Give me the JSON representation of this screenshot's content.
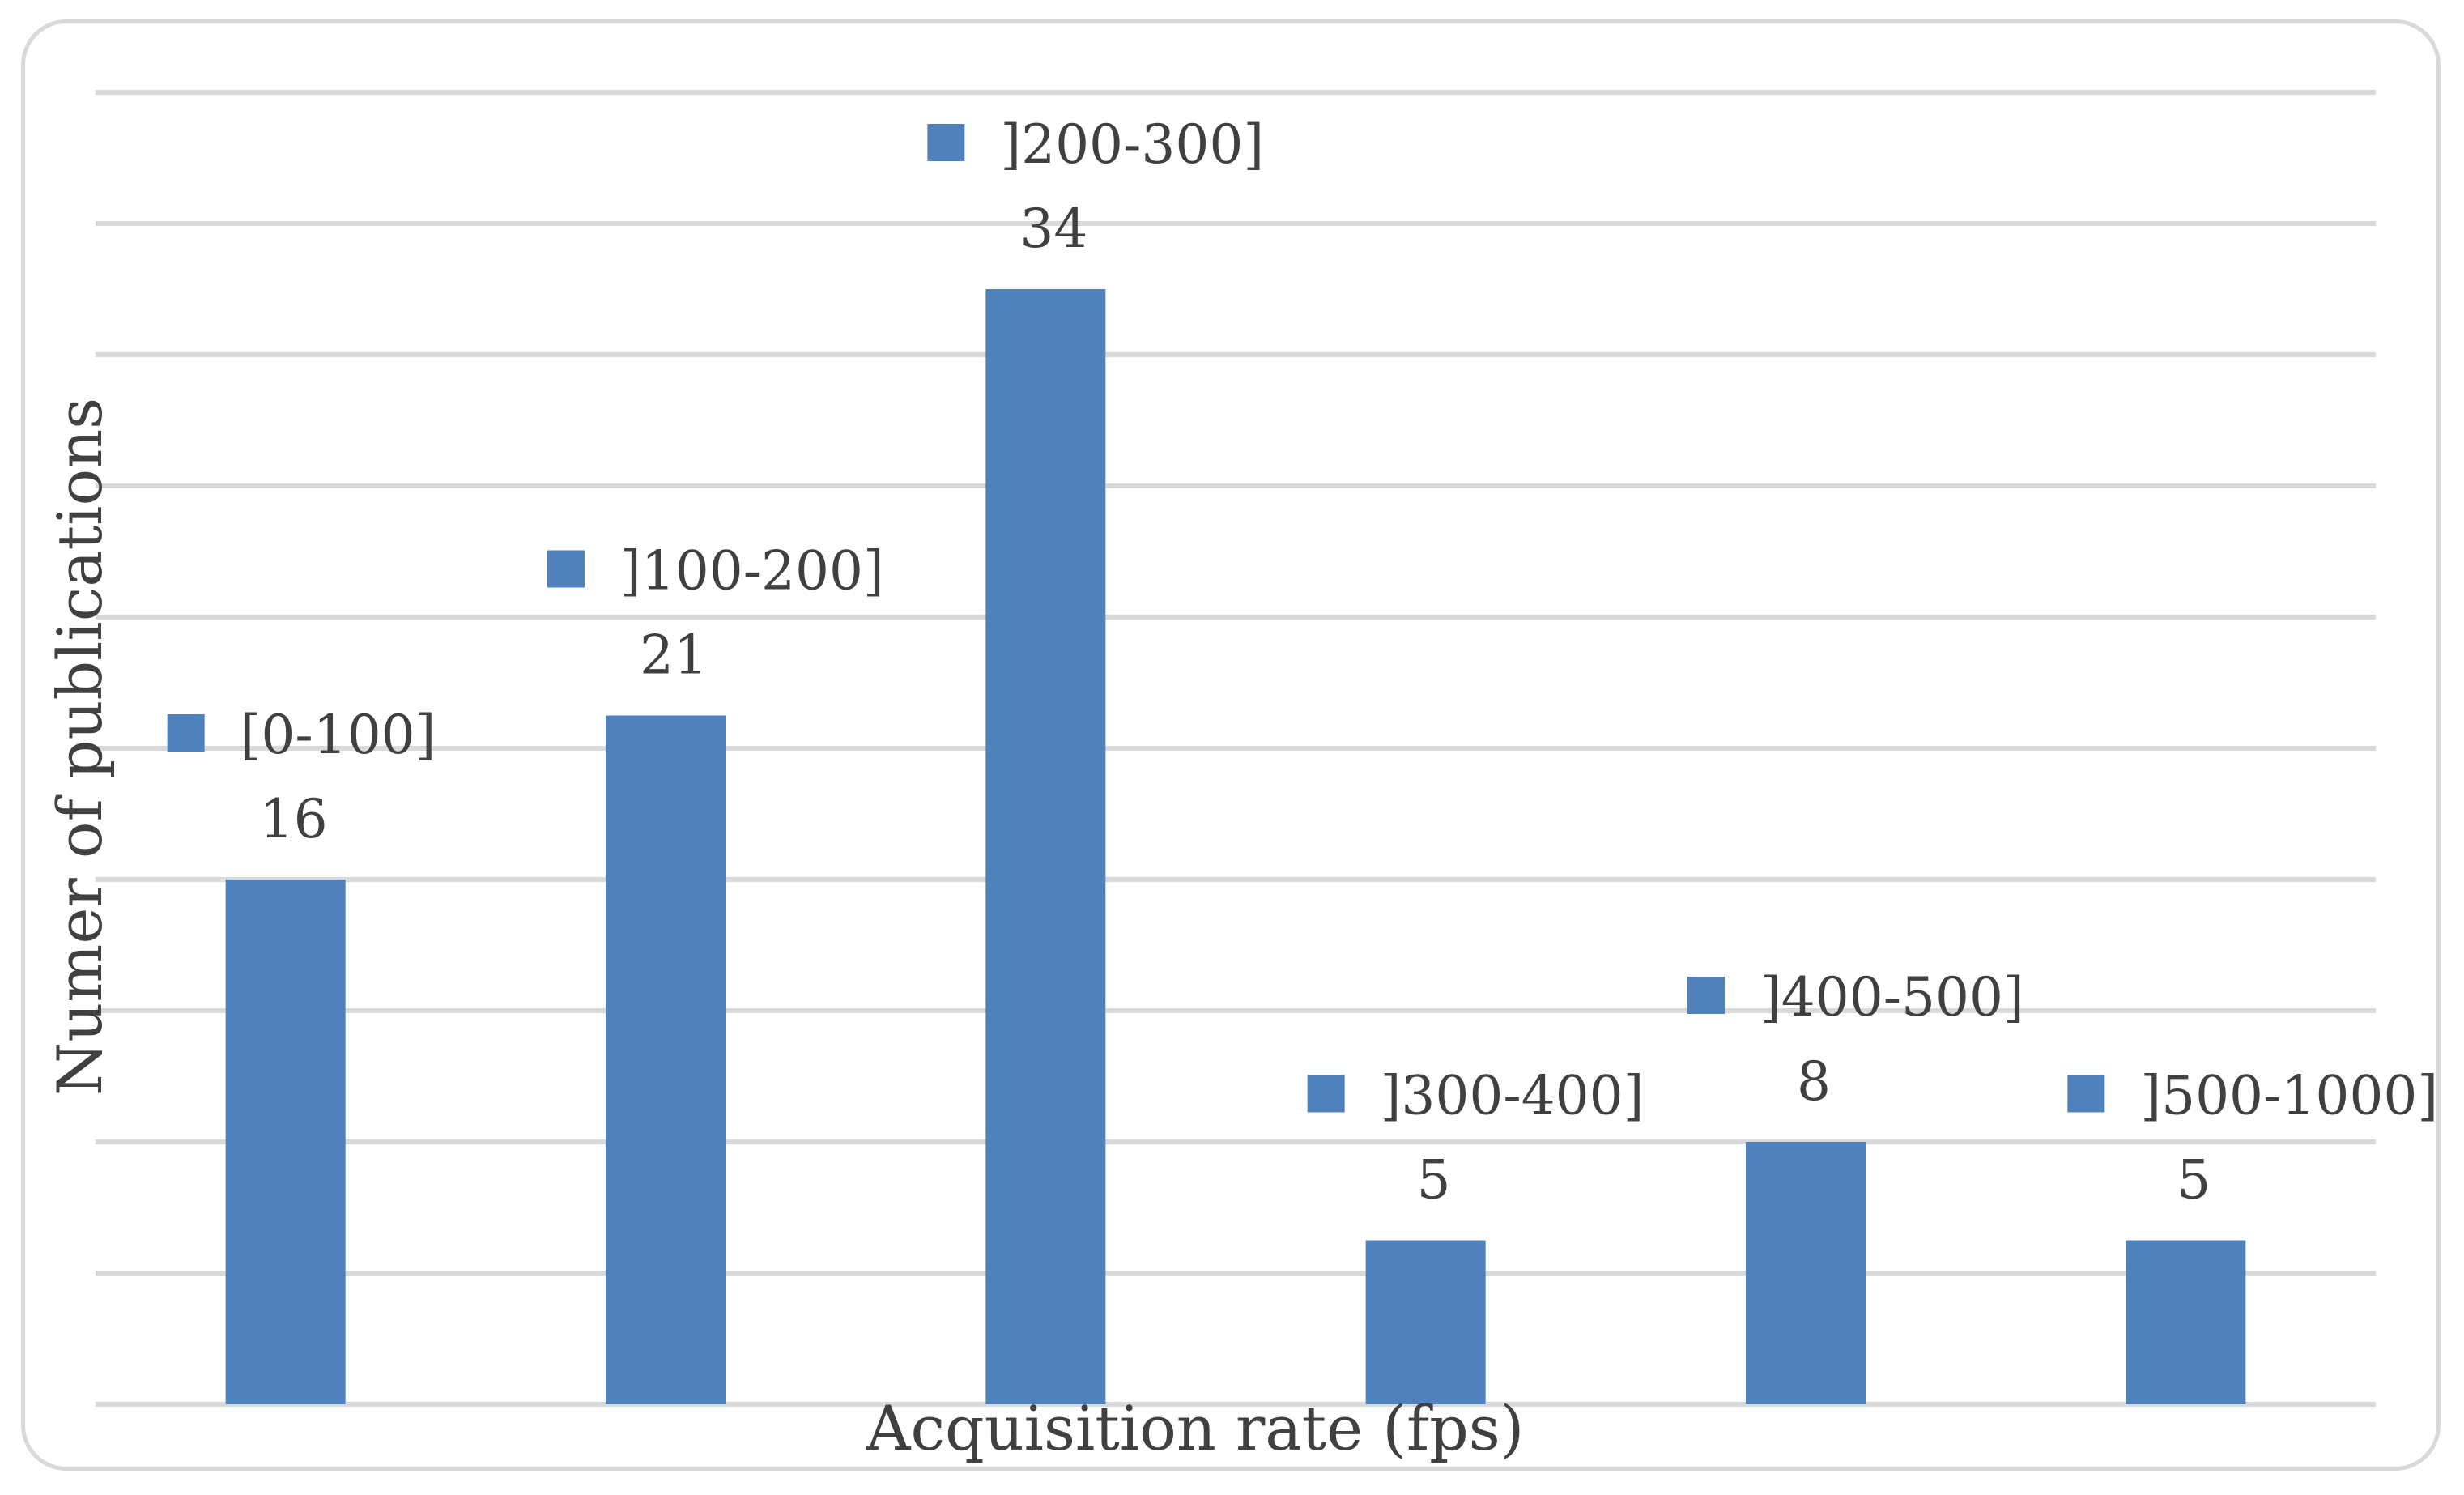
{
  "chart_data": {
    "type": "bar",
    "categories": [
      "[0-100]",
      "]100-200]",
      "]200-300]",
      "]300-400]",
      "]400-500]",
      "]500-1000]"
    ],
    "values": [
      16,
      21,
      34,
      5,
      8,
      5
    ],
    "xlabel": "Acquisition rate (fps)",
    "ylabel": "Numer of publications",
    "ylim": [
      0,
      40
    ],
    "grid": true,
    "bar_color": "#4f81bd",
    "grid_color": "#d9d9d9",
    "legend": "per-bar labels above each bar"
  }
}
